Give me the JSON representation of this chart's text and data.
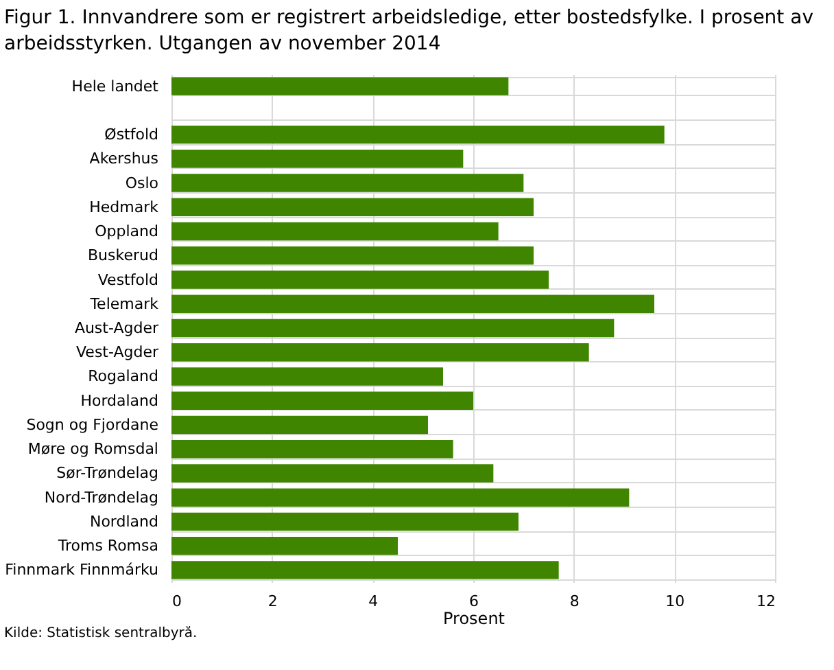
{
  "chart_data": {
    "type": "bar",
    "orientation": "horizontal",
    "title": "Figur 1. Innvandrere som er registrert arbeidsledige, etter bostedsfylke. I prosent av arbeidsstyrken. Utgangen av  november 2014",
    "xlabel": "Prosent",
    "categories": [
      "Hele landet",
      null,
      "Østfold",
      "Akershus",
      "Oslo",
      "Hedmark",
      "Oppland",
      "Buskerud",
      "Vestfold",
      "Telemark",
      "Aust-Agder",
      "Vest-Agder",
      "Rogaland",
      "Hordaland",
      "Sogn og Fjordane",
      "Møre og Romsdal",
      "Sør-Trøndelag",
      "Nord-Trøndelag",
      "Nordland",
      "Troms Romsa",
      "Finnmark Finnmárku"
    ],
    "values": [
      6.7,
      null,
      9.8,
      5.8,
      7.0,
      7.2,
      6.5,
      7.2,
      7.5,
      9.6,
      8.8,
      8.3,
      5.4,
      6.0,
      5.1,
      5.6,
      6.4,
      9.1,
      6.9,
      4.5,
      7.7
    ],
    "color": "#3f8500",
    "xlim": [
      0,
      12
    ],
    "xticks": [
      0,
      2,
      4,
      6,
      8,
      10,
      12
    ],
    "grid": true,
    "annotations": [
      "Kilde: Statistisk sentralbyrå."
    ]
  }
}
